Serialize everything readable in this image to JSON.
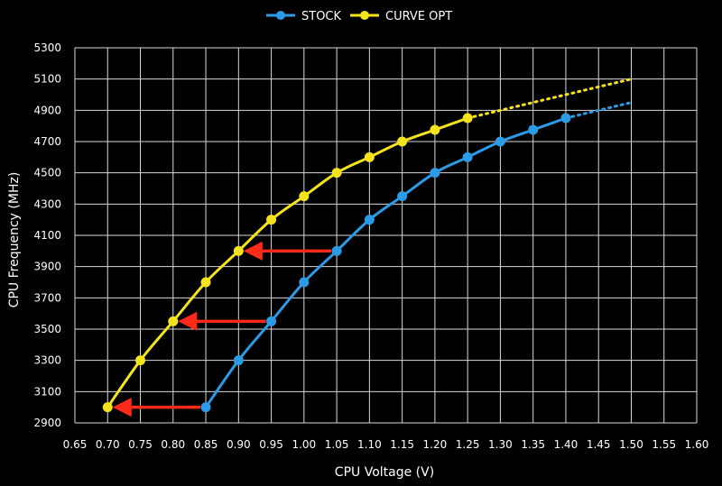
{
  "chart_data": {
    "type": "line",
    "xlabel": "CPU Voltage (V)",
    "ylabel": "CPU Frequency (MHz)",
    "xlim": [
      0.65,
      1.6
    ],
    "ylim": [
      2900,
      5300
    ],
    "x_ticks": [
      "0.65",
      "0.70",
      "0.75",
      "0.80",
      "0.85",
      "0.90",
      "0.95",
      "1.00",
      "1.05",
      "1.10",
      "1.15",
      "1.20",
      "1.25",
      "1.30",
      "1.35",
      "1.40",
      "1.45",
      "1.50",
      "1.55",
      "1.60"
    ],
    "y_ticks": [
      "2900",
      "3100",
      "3300",
      "3500",
      "3700",
      "3900",
      "4100",
      "4300",
      "4500",
      "4700",
      "4900",
      "5100",
      "5300"
    ],
    "grid": true,
    "legend_position": "top-center",
    "series": [
      {
        "name": "STOCK",
        "color": "#2b9be8",
        "x": [
          0.85,
          0.9,
          0.95,
          1.0,
          1.05,
          1.1,
          1.15,
          1.2,
          1.25,
          1.3,
          1.35,
          1.4
        ],
        "y": [
          3000,
          3300,
          3550,
          3800,
          4000,
          4200,
          4350,
          4500,
          4600,
          4700,
          4775,
          4850
        ],
        "extrapolated": {
          "x": [
            1.4,
            1.5
          ],
          "y": [
            4850,
            4950
          ]
        }
      },
      {
        "name": "CURVE OPT",
        "color": "#f5e31c",
        "x": [
          0.7,
          0.75,
          0.8,
          0.85,
          0.9,
          0.95,
          1.0,
          1.05,
          1.1,
          1.15,
          1.2,
          1.25
        ],
        "y": [
          3000,
          3300,
          3550,
          3800,
          4000,
          4200,
          4350,
          4500,
          4600,
          4700,
          4775,
          4850
        ],
        "extrapolated": {
          "x": [
            1.25,
            1.5
          ],
          "y": [
            4850,
            5100
          ]
        }
      }
    ],
    "annotations": [
      {
        "type": "arrow",
        "color": "#ff2a1a",
        "from": [
          0.85,
          3000
        ],
        "to": [
          0.7,
          3000
        ]
      },
      {
        "type": "arrow",
        "color": "#ff2a1a",
        "from": [
          0.95,
          3550
        ],
        "to": [
          0.8,
          3550
        ]
      },
      {
        "type": "arrow",
        "color": "#ff2a1a",
        "from": [
          1.05,
          4000
        ],
        "to": [
          0.9,
          4000
        ]
      }
    ]
  }
}
